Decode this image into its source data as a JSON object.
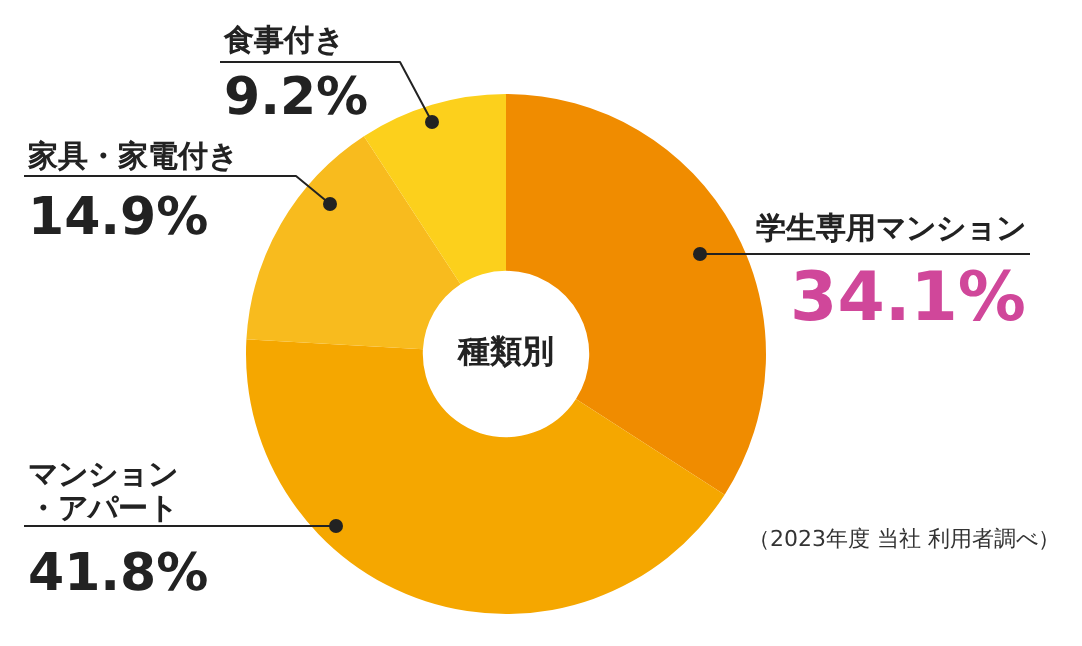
{
  "chart_data": {
    "type": "donut",
    "title": "種類別",
    "categories": [
      "学生専用マンション",
      "マンション・アパート",
      "家具・家電付き",
      "食事付き"
    ],
    "values": [
      34.1,
      41.8,
      14.9,
      9.2
    ],
    "colors": [
      "#f08c00",
      "#f5a700",
      "#f8bb1e",
      "#fcd01c"
    ],
    "value_labels": [
      "34.1%",
      "41.8%",
      "14.9%",
      "9.2%"
    ],
    "legend": false,
    "annotations": [
      "（2023年度 当社 利用者調べ）"
    ]
  }
}
